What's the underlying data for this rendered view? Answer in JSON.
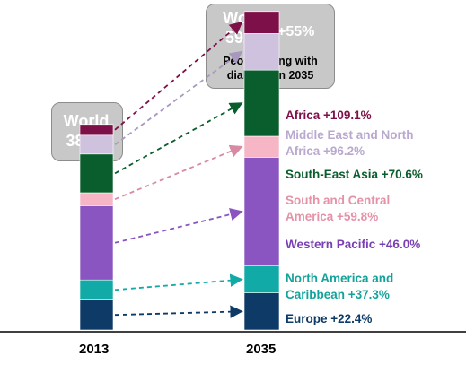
{
  "world_2013": {
    "label": "World",
    "value": "382M"
  },
  "world_2035": {
    "label": "World",
    "value": "592M",
    "growth": "+55%",
    "caption": "People living with diabetes in 2035"
  },
  "chart_data": {
    "type": "bar",
    "stacked": true,
    "categories": [
      "2013",
      "2035"
    ],
    "unit": "millions of people living with diabetes",
    "totals": [
      382,
      592
    ],
    "series": [
      {
        "name": "Europe",
        "growth": "+22.4%",
        "values": [
          56,
          69
        ],
        "color": "#0d3a66"
      },
      {
        "name": "North America and Caribbean",
        "growth": "+37.3%",
        "values": [
          37,
          50
        ],
        "color": "#11aaa6"
      },
      {
        "name": "Western Pacific",
        "growth": "+46.0%",
        "values": [
          138,
          202
        ],
        "color": "#8a55c0"
      },
      {
        "name": "South and Central America",
        "growth": "+59.8%",
        "values": [
          24,
          39
        ],
        "color": "#f6b6c6"
      },
      {
        "name": "South-East Asia",
        "growth": "+70.6%",
        "values": [
          72,
          123
        ],
        "color": "#0a5d2c"
      },
      {
        "name": "Middle East and North Africa",
        "growth": "+96.2%",
        "values": [
          35,
          68
        ],
        "color": "#cfc2de"
      },
      {
        "name": "Africa",
        "growth": "+109.1%",
        "values": [
          20,
          41
        ],
        "color": "#7d1048"
      }
    ],
    "legend_placement": "right of 2035 bar"
  },
  "label_colors": {
    "Africa": "#7d1048",
    "Middle East and North Africa": "#b9a9cf",
    "South-East Asia": "#0a5d2c",
    "South and Central America": "#e591a8",
    "Western Pacific": "#7a3fb3",
    "North America and Caribbean": "#14a39b",
    "Europe": "#0d3a66"
  },
  "region_labels": [
    {
      "text": "Africa +109.1%"
    },
    {
      "text": "Middle East and North Africa +96.2%"
    },
    {
      "text": "South-East Asia +70.6%"
    },
    {
      "text": "South and Central America +59.8%"
    },
    {
      "text": "Western Pacific +46.0%"
    },
    {
      "text": "North America and Caribbean  +37.3%"
    },
    {
      "text": "Europe +22.4%"
    }
  ],
  "region_label_lines": [
    [
      "Africa +109.1%"
    ],
    [
      "Middle East and North",
      "Africa +96.2%"
    ],
    [
      "South-East Asia +70.6%"
    ],
    [
      "South and Central",
      "America +59.8%"
    ],
    [
      "Western Pacific +46.0%"
    ],
    [
      "North America and",
      "Caribbean  +37.3%"
    ],
    [
      "Europe +22.4%"
    ]
  ]
}
